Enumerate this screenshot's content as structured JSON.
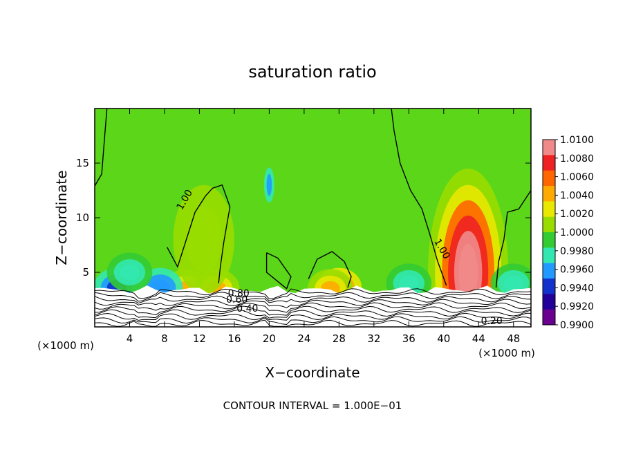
{
  "chart_data": {
    "type": "heatmap",
    "title": "saturation ratio",
    "xlabel": "X−coordinate",
    "ylabel": "Z−coordinate",
    "x_unit": "(×1000 m)",
    "y_unit": "(×1000 m)",
    "xlim": [
      0,
      50
    ],
    "ylim": [
      0,
      20
    ],
    "x_ticks": [
      4,
      8,
      12,
      16,
      20,
      24,
      28,
      32,
      36,
      40,
      44,
      48
    ],
    "y_ticks": [
      5,
      10,
      15
    ],
    "grid": false,
    "colorbar": {
      "levels": [
        "1.0100",
        "1.0080",
        "1.0060",
        "1.0040",
        "1.0020",
        "1.0000",
        "0.9980",
        "0.9960",
        "0.9940",
        "0.9920",
        "0.9900"
      ],
      "colors": [
        "#f08a8a",
        "#ee2222",
        "#ff6600",
        "#ffaa00",
        "#e8e800",
        "#99dd00",
        "#33cc33",
        "#33e8b0",
        "#2299ff",
        "#1133cc",
        "#22009a",
        "#6a0090"
      ]
    },
    "contour_labels": [
      "1.00",
      "1.00",
      "0.80",
      "0.60",
      "0.40",
      "0.20"
    ],
    "footer": "CONTOUR INTERVAL = 1.000E−01",
    "background_value": 1.0,
    "anomalies": [
      {
        "x": 42.8,
        "z": 5.0,
        "value": 1.012
      },
      {
        "x": 28.0,
        "z": 3.6,
        "value": 1.006
      },
      {
        "x": 10.5,
        "z": 3.5,
        "value": 1.004
      },
      {
        "x": 14.0,
        "z": 3.5,
        "value": 1.004
      },
      {
        "x": 27.0,
        "z": 3.5,
        "value": 1.004
      },
      {
        "x": 12.5,
        "z": 8.0,
        "value": 1.001
      },
      {
        "x": 2.5,
        "z": 3.6,
        "value": 0.993
      },
      {
        "x": 7.5,
        "z": 3.6,
        "value": 0.994
      },
      {
        "x": 4.0,
        "z": 5.0,
        "value": 0.997
      },
      {
        "x": 48.0,
        "z": 4.0,
        "value": 0.997
      },
      {
        "x": 20.0,
        "z": 13.0,
        "value": 0.994
      },
      {
        "x": 36.0,
        "z": 4.0,
        "value": 0.997
      }
    ]
  }
}
